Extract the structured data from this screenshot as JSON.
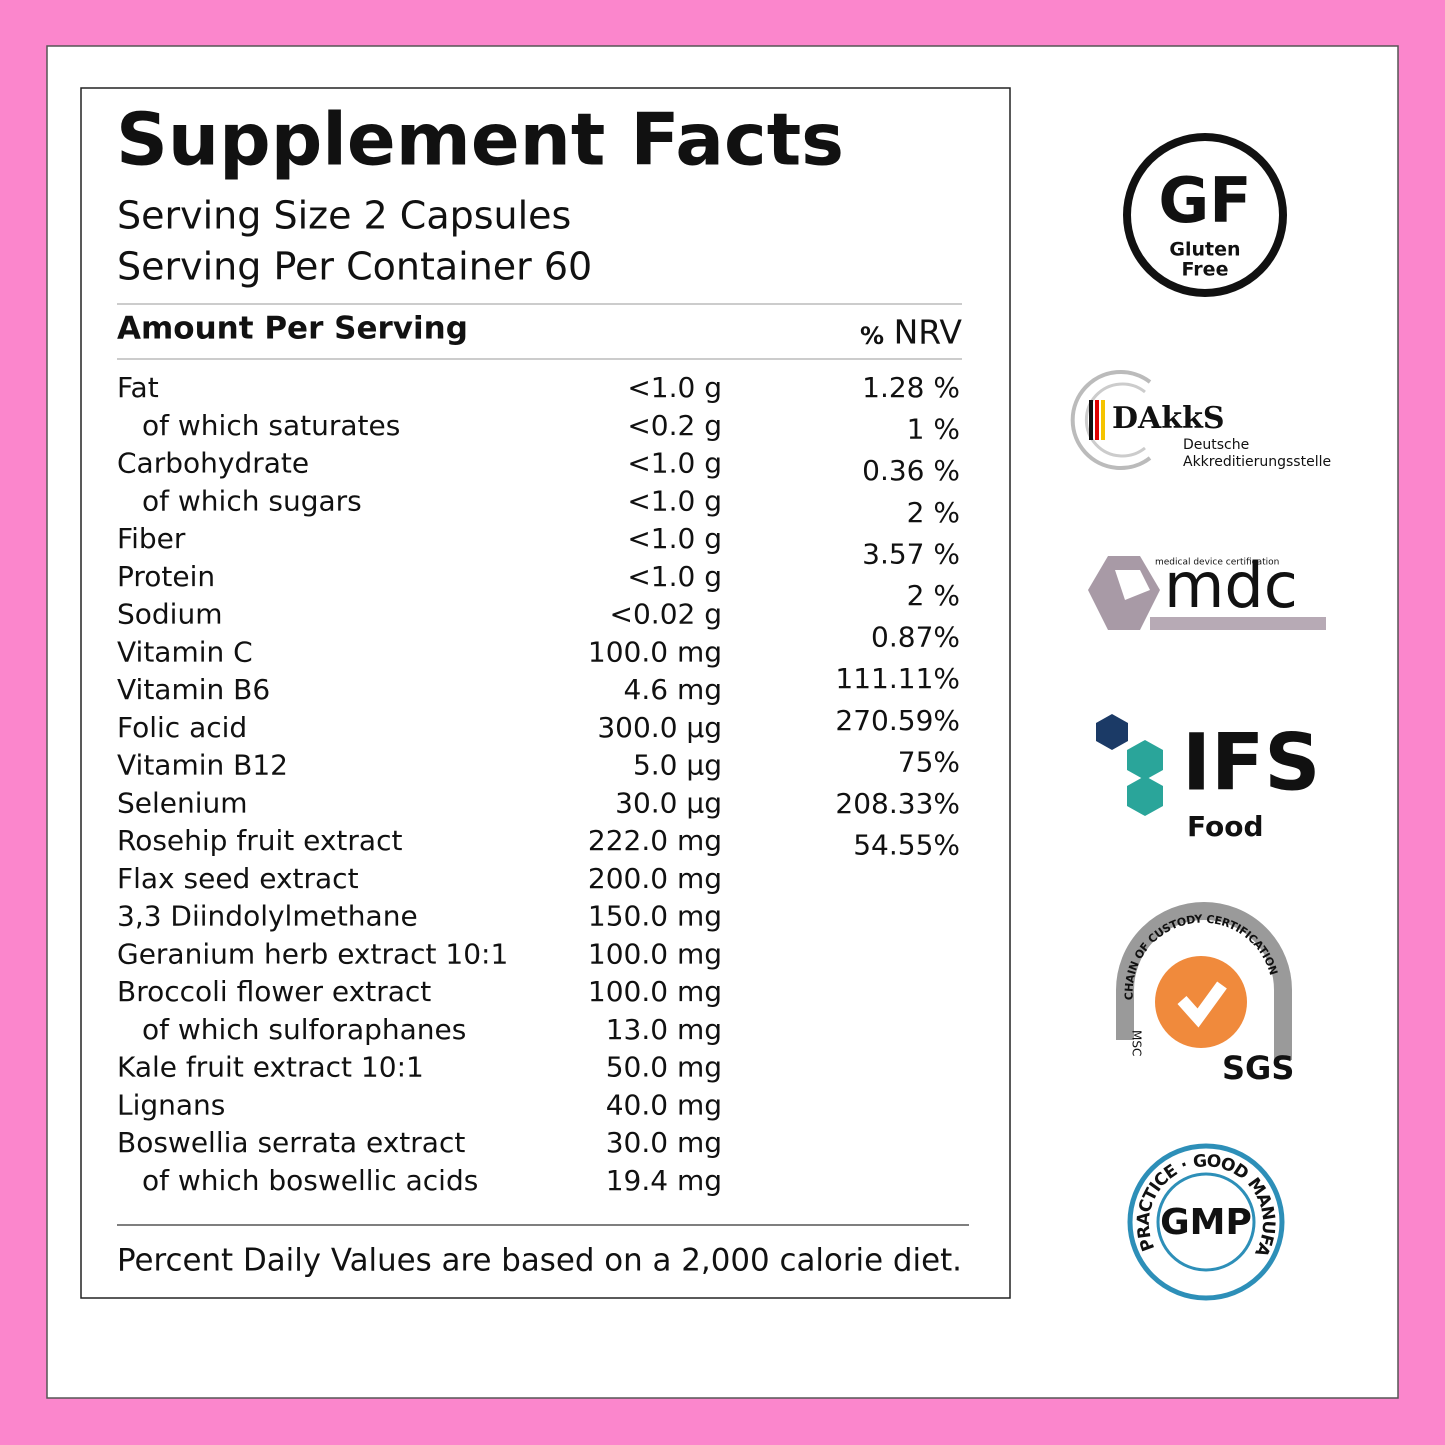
{
  "label": {
    "title": "Supplement Facts",
    "serving_size": "Serving Size 2 Capsules",
    "servings_per_container": "Serving Per Container 60",
    "amount_header": "Amount Per Serving",
    "nrv_symbol": "%",
    "nrv_header": "NRV",
    "rows": [
      {
        "name": "Fat",
        "amount": "<1.0 g"
      },
      {
        "name": "of which saturates",
        "amount": "<0.2 g",
        "sub": true
      },
      {
        "name": "Carbohydrate",
        "amount": "<1.0 g"
      },
      {
        "name": "of which sugars",
        "amount": "<1.0 g",
        "sub": true
      },
      {
        "name": "Fiber",
        "amount": "<1.0 g"
      },
      {
        "name": "Protein",
        "amount": "<1.0 g"
      },
      {
        "name": "Sodium",
        "amount": "<0.02 g"
      },
      {
        "name": "Vitamin C",
        "amount": "100.0 mg"
      },
      {
        "name": "Vitamin B6",
        "amount": "4.6 mg"
      },
      {
        "name": "Folic acid",
        "amount": "300.0 µg"
      },
      {
        "name": "Vitamin B12",
        "amount": "5.0 µg"
      },
      {
        "name": "Selenium",
        "amount": "30.0 µg"
      },
      {
        "name": "Rosehip fruit extract",
        "amount": "222.0 mg"
      },
      {
        "name": "Flax seed extract",
        "amount": "200.0 mg"
      },
      {
        "name": "3,3 Diindolylmethane",
        "amount": "150.0 mg"
      },
      {
        "name": "Geranium herb extract 10:1",
        "amount": "100.0 mg"
      },
      {
        "name": "Broccoli flower extract",
        "amount": "100.0 mg"
      },
      {
        "name": "of which sulforaphanes",
        "amount": "13.0 mg",
        "sub": true
      },
      {
        "name": "Kale fruit extract 10:1",
        "amount": "50.0 mg"
      },
      {
        "name": "Lignans",
        "amount": "40.0 mg"
      },
      {
        "name": "Boswellia serrata extract",
        "amount": "30.0 mg"
      },
      {
        "name": "of which boswellic acids",
        "amount": "19.4 mg",
        "sub": true
      }
    ],
    "nrv": [
      "1.28 %",
      "1 %",
      "0.36 %",
      "2 %",
      "3.57 %",
      "2 %",
      "0.87%",
      "111.11%",
      "270.59%",
      "75%",
      "208.33%",
      "54.55%"
    ],
    "footnote": "Percent Daily Values are based on a 2,000 calorie diet."
  },
  "badges": {
    "gf": {
      "mark": "GF",
      "line1": "Gluten",
      "line2": "Free"
    },
    "dakks": {
      "mark": "DAkkS",
      "line1": "Deutsche",
      "line2": "Akkreditierungsstelle"
    },
    "mdc": {
      "caption": "medical device certification",
      "mark": "mdc"
    },
    "ifs": {
      "mark": "IFS",
      "sub": "Food"
    },
    "sgs": {
      "arc": "CHAIN OF CUSTODY CERTIFICATION",
      "side": "MSC",
      "mark": "SGS"
    },
    "gmp": {
      "arc": "PRACTICE · GOOD MANUFACTURING",
      "mark": "GMP"
    }
  }
}
